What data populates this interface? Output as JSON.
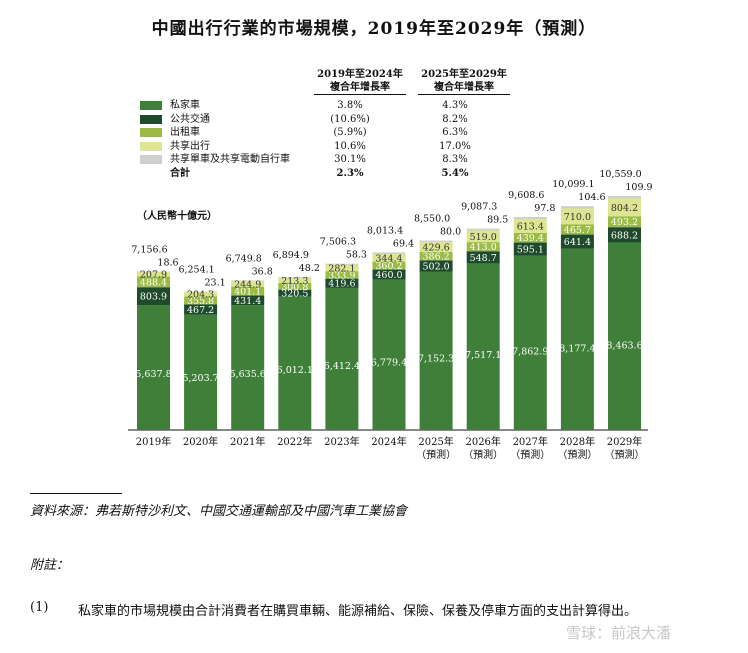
{
  "title": "中國出行行業的市場規模，2019年至2029年（預測）",
  "cagr_headers": {
    "c1_line1": "2019年至2024年",
    "c1_line2": "複合年增長率",
    "c2_line1": "2025年至2029年",
    "c2_line2": "複合年增長率"
  },
  "legend": [
    {
      "label": "私家車",
      "cagr1": "3.8%",
      "cagr2": "4.3%",
      "color": "#3f7f3a"
    },
    {
      "label": "公共交通",
      "cagr1": "(10.6%)",
      "cagr2": "8.2%",
      "color": "#1f4a2c"
    },
    {
      "label": "出租車",
      "cagr1": "(5.9%)",
      "cagr2": "6.3%",
      "color": "#9bbb45"
    },
    {
      "label": "共享出行",
      "cagr1": "10.6%",
      "cagr2": "17.0%",
      "color": "#dde592"
    },
    {
      "label": "共享單車及共享電動自行車",
      "cagr1": "30.1%",
      "cagr2": "8.3%",
      "color": "#cfcfcf"
    }
  ],
  "total_row": {
    "label": "合計",
    "cagr1": "2.3%",
    "cagr2": "5.4%"
  },
  "unit_label": "（人民幣十億元）",
  "chart_data": {
    "type": "bar",
    "stacked": true,
    "categories": [
      "2019年",
      "2020年",
      "2021年",
      "2022年",
      "2023年",
      "2024年",
      "2025年",
      "2026年",
      "2027年",
      "2028年",
      "2029年"
    ],
    "category_sublabels": [
      "",
      "",
      "",
      "",
      "",
      "",
      "（預測）",
      "（預測）",
      "（預測）",
      "（預測）",
      "（預測）"
    ],
    "series": [
      {
        "name": "私家車",
        "color": "#3f7f3a",
        "labels": [
          "5,637.8",
          "5,203.7",
          "5,635.6",
          "6,012.1",
          "6,412.4",
          "6,779.4",
          "7,152.3",
          "7,517.1",
          "7,862.9",
          "8,177.4",
          "8,463.6"
        ],
        "values": [
          5637.8,
          5203.7,
          5635.6,
          6012.1,
          6412.4,
          6779.4,
          7152.3,
          7517.1,
          7862.9,
          8177.4,
          8463.6
        ]
      },
      {
        "name": "公共交通",
        "color": "#1f4a2c",
        "labels": [
          "803.9",
          "467.2",
          "431.4",
          "320.5",
          "419.6",
          "460.0",
          "502.0",
          "548.7",
          "595.1",
          "641.4",
          "688.2"
        ],
        "values": [
          803.9,
          467.2,
          431.4,
          320.5,
          419.6,
          460.0,
          502.0,
          548.7,
          595.1,
          641.4,
          688.2
        ]
      },
      {
        "name": "出租車",
        "color": "#9bbb45",
        "labels": [
          "488.4",
          "355.8",
          "401.1",
          "300.8",
          "333.9",
          "360.2",
          "386.2",
          "413.0",
          "439.4",
          "465.7",
          "493.2"
        ],
        "values": [
          488.4,
          355.8,
          401.1,
          300.8,
          333.9,
          360.2,
          386.2,
          413.0,
          439.4,
          465.7,
          493.2
        ]
      },
      {
        "name": "共享出行",
        "color": "#dde592",
        "labels": [
          "207.9",
          "204.3",
          "244.9",
          "213.3",
          "282.1",
          "344.4",
          "429.6",
          "519.0",
          "613.4",
          "710.0",
          "804.2"
        ],
        "values": [
          207.9,
          204.3,
          244.9,
          213.3,
          282.1,
          344.4,
          429.6,
          519.0,
          613.4,
          710.0,
          804.2
        ]
      },
      {
        "name": "共享單車及共享電動自行車",
        "color": "#cfcfcf",
        "labels": [
          "18.6",
          "23.1",
          "36.8",
          "48.2",
          "58.3",
          "69.4",
          "80.0",
          "89.5",
          "97.8",
          "104.6",
          "109.9"
        ],
        "values": [
          18.6,
          23.1,
          36.8,
          48.2,
          58.3,
          69.4,
          80.0,
          89.5,
          97.8,
          104.6,
          109.9
        ]
      }
    ],
    "totals": [
      "7,156.6",
      "6,254.1",
      "6,749.8",
      "6,894.9",
      "7,506.3",
      "8,013.4",
      "8,550.0",
      "9,087.3",
      "9,608.6",
      "10,099.1",
      "10,559.0"
    ],
    "ylim": [
      0,
      10559.0
    ],
    "grid": false
  },
  "source_text": "資料來源：弗若斯特沙利文、中國交通運輸部及中國汽車工業協會",
  "notes_heading": "附註：",
  "note_number": "(1)",
  "note_text": "私家車的市場規模由合計消費者在購買車輛、能源補給、保險、保養及停車方面的支出計算得出。",
  "watermark": "雪球：前浪大潘"
}
